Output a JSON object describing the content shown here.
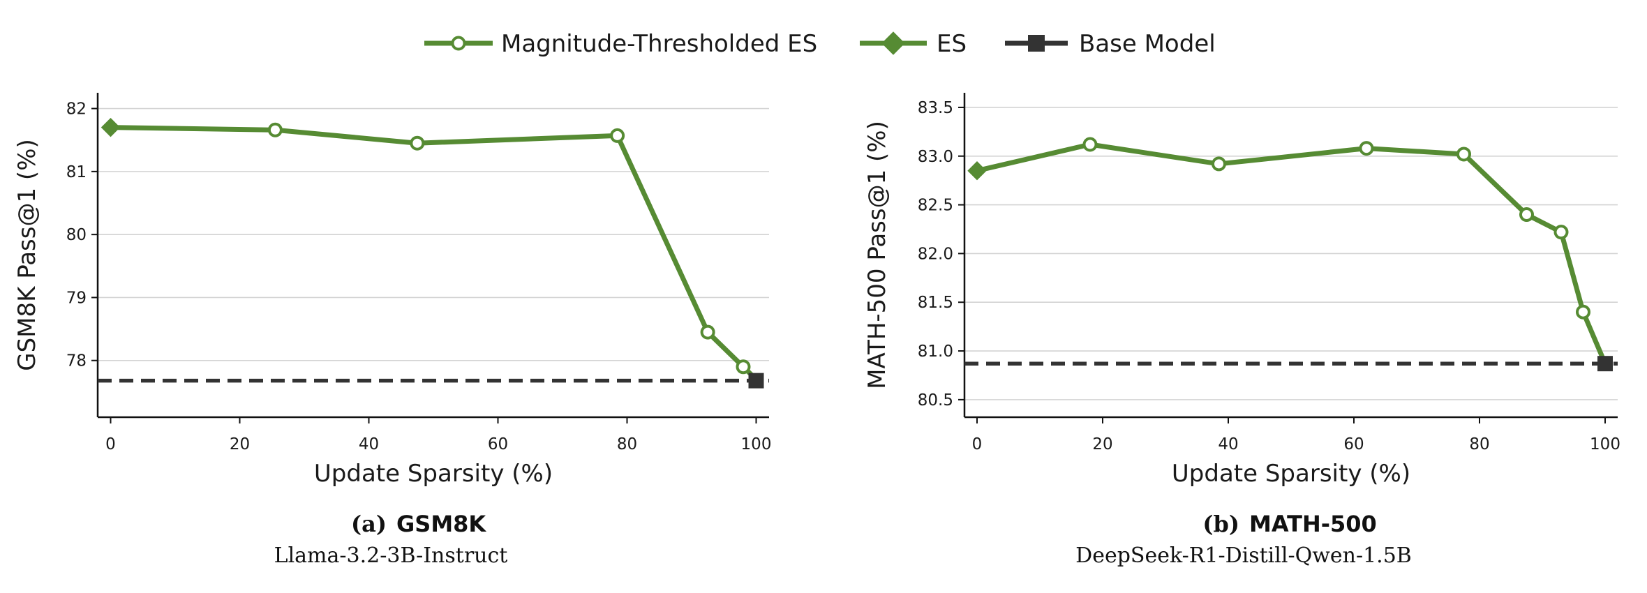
{
  "colors": {
    "es": "#568b33",
    "base": "#333333",
    "grid": "#d3d3d3",
    "axis": "#111111"
  },
  "legend": [
    {
      "label": "Magnitude-Thresholded ES",
      "marker": "open-circle",
      "color": "#568b33",
      "dashed": false
    },
    {
      "label": "ES",
      "marker": "diamond",
      "color": "#568b33",
      "dashed": false
    },
    {
      "label": "Base Model",
      "marker": "square",
      "color": "#333333",
      "dashed": false
    }
  ],
  "chart_data": [
    {
      "type": "line",
      "caption_label": "(a)",
      "caption_title": "GSM8K",
      "caption_subtitle": "Llama-3.2-3B-Instruct",
      "xlabel": "Update Sparsity (%)",
      "ylabel": "GSM8K Pass@1 (%)",
      "xlim": [
        -2,
        102
      ],
      "ylim": [
        77.1,
        82.25
      ],
      "xticks": [
        0,
        20,
        40,
        60,
        80,
        100
      ],
      "yticks": [
        78,
        79,
        80,
        81,
        82
      ],
      "ytick_labels": [
        "78",
        "79",
        "80",
        "81",
        "82"
      ],
      "grid": "horizontal",
      "series": [
        {
          "name": "Magnitude-Thresholded ES",
          "x": [
            0,
            25.5,
            47.5,
            78.5,
            92.5,
            98,
            100
          ],
          "y": [
            81.7,
            81.66,
            81.45,
            81.57,
            78.45,
            77.9,
            77.7
          ]
        },
        {
          "name": "ES",
          "x": [
            0
          ],
          "y": [
            81.7
          ]
        },
        {
          "name": "Base Model",
          "x": [
            100
          ],
          "y": [
            77.68
          ],
          "baseline": 77.68
        }
      ]
    },
    {
      "type": "line",
      "caption_label": "(b)",
      "caption_title": "MATH-500",
      "caption_subtitle": "DeepSeek-R1-Distill-Qwen-1.5B",
      "xlabel": "Update Sparsity (%)",
      "ylabel": "MATH-500 Pass@1 (%)",
      "xlim": [
        -2,
        102
      ],
      "ylim": [
        80.32,
        83.65
      ],
      "xticks": [
        0,
        20,
        40,
        60,
        80,
        100
      ],
      "yticks": [
        80.5,
        81.0,
        81.5,
        82.0,
        82.5,
        83.0,
        83.5
      ],
      "ytick_labels": [
        "80.5",
        "81.0",
        "81.5",
        "82.0",
        "82.5",
        "83.0",
        "83.5"
      ],
      "grid": "horizontal",
      "series": [
        {
          "name": "Magnitude-Thresholded ES",
          "x": [
            0,
            18,
            38.5,
            62,
            77.5,
            87.5,
            93,
            96.5,
            100
          ],
          "y": [
            82.85,
            83.12,
            82.92,
            83.08,
            83.02,
            82.4,
            82.22,
            81.4,
            80.87
          ]
        },
        {
          "name": "ES",
          "x": [
            0
          ],
          "y": [
            82.85
          ]
        },
        {
          "name": "Base Model",
          "x": [
            100
          ],
          "y": [
            80.87
          ],
          "baseline": 80.87
        }
      ]
    }
  ]
}
